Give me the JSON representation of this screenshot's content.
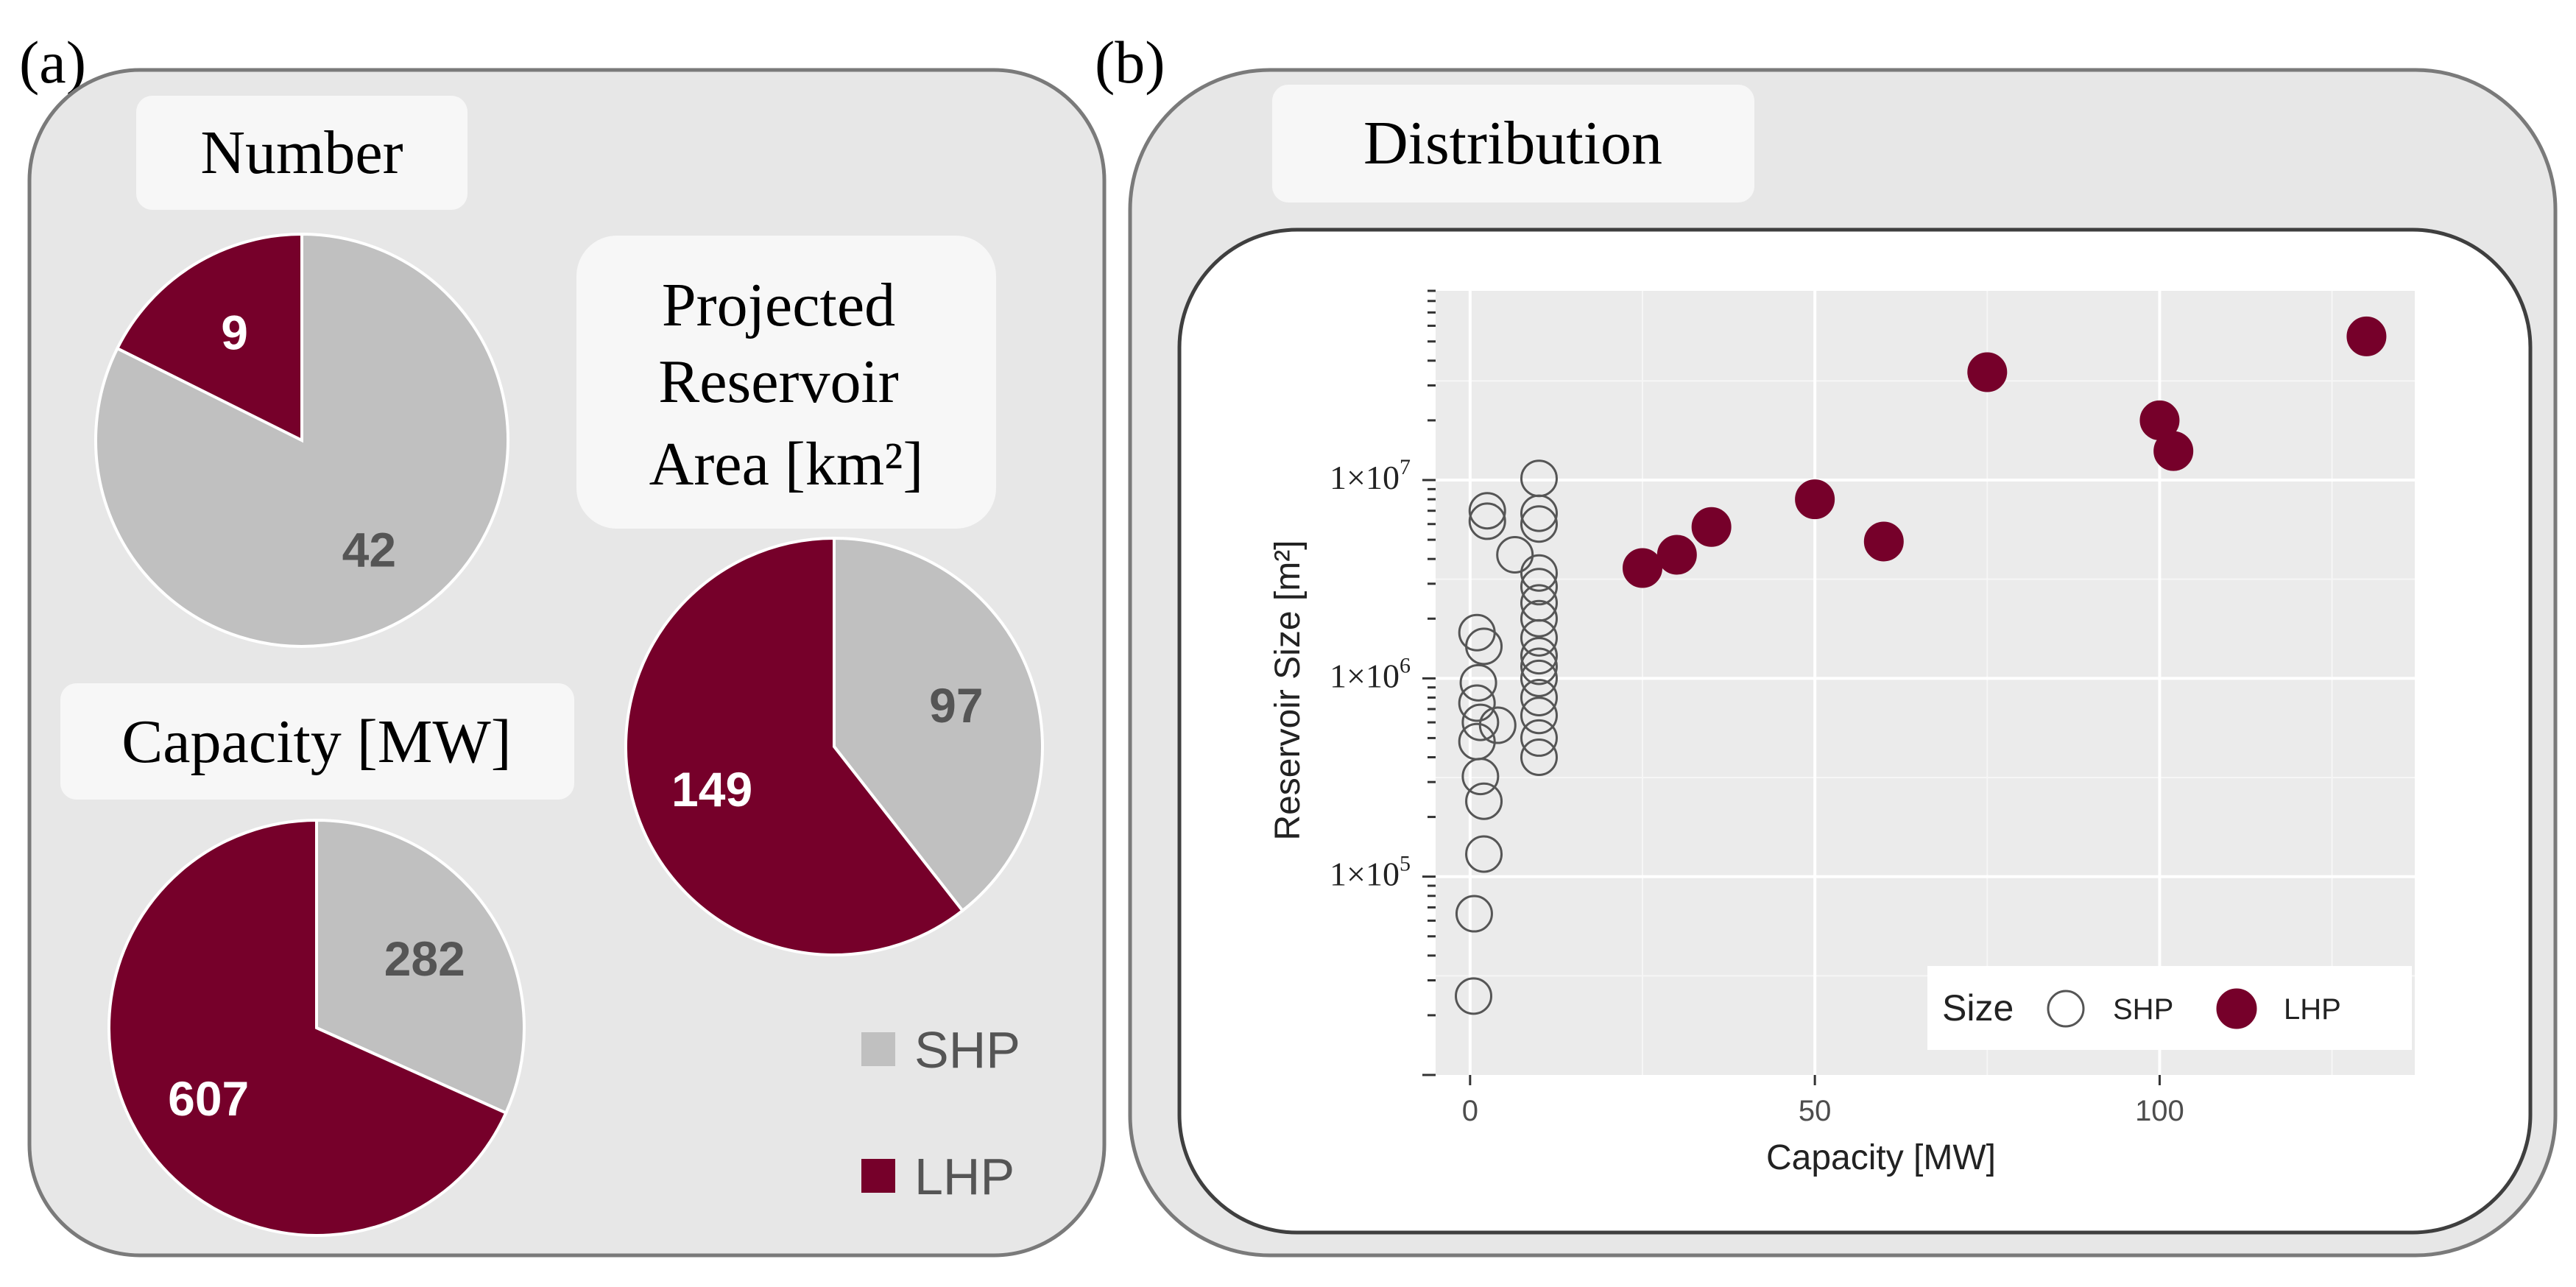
{
  "panel_labels": {
    "a": "(a)",
    "b": "(b)"
  },
  "pies": [
    {
      "title": "Number",
      "slices": [
        {
          "name": "LHP",
          "value": 9,
          "label": "9"
        },
        {
          "name": "SHP",
          "value": 42,
          "label": "42"
        }
      ]
    },
    {
      "title": "Capacity [MW]",
      "slices": [
        {
          "name": "LHP",
          "value": 607,
          "label": "607"
        },
        {
          "name": "SHP",
          "value": 282,
          "label": "282"
        }
      ]
    },
    {
      "title_lines": [
        "Projected",
        "Reservoir",
        "Area [km²]"
      ],
      "slices": [
        {
          "name": "LHP",
          "value": 149,
          "label": "149"
        },
        {
          "name": "SHP",
          "value": 97,
          "label": "97"
        }
      ]
    }
  ],
  "pie_legend": [
    {
      "name": "SHP",
      "color": "#c0c0c0"
    },
    {
      "name": "LHP",
      "color": "#76002a"
    }
  ],
  "colors": {
    "SHP": "#c0c0c0",
    "LHP": "#76002a",
    "SHP_text": "#555555",
    "LHP_text": "#ffffff"
  },
  "scatter_title": "Distribution",
  "chart_data": [
    {
      "type": "pie",
      "title": "Number",
      "categories": [
        "SHP",
        "LHP"
      ],
      "values": [
        42,
        9
      ]
    },
    {
      "type": "pie",
      "title": "Capacity [MW]",
      "categories": [
        "SHP",
        "LHP"
      ],
      "values": [
        282,
        607
      ]
    },
    {
      "type": "pie",
      "title": "Projected Reservoir Area [km²]",
      "categories": [
        "SHP",
        "LHP"
      ],
      "values": [
        97,
        149
      ]
    },
    {
      "type": "scatter",
      "title": "Distribution",
      "xlabel": "Capacity [MW]",
      "ylabel": "Reservoir Size [m²]",
      "xlim": [
        -5,
        137
      ],
      "ylim": [
        10000,
        90000000
      ],
      "y_scale": "log",
      "x_ticks": [
        0,
        50,
        100
      ],
      "y_ticks": [
        {
          "value": 100000,
          "base": "1×10",
          "exp": "5"
        },
        {
          "value": 1000000,
          "base": "1×10",
          "exp": "6"
        },
        {
          "value": 10000000,
          "base": "1×10",
          "exp": "7"
        }
      ],
      "grid": true,
      "legend": {
        "title": "Size",
        "position": "bottom-right"
      },
      "series": [
        {
          "name": "SHP",
          "marker": "open-circle",
          "points": [
            [
              0.5,
              25000
            ],
            [
              0.6,
              65000
            ],
            [
              2.0,
              130000
            ],
            [
              2.0,
              240000
            ],
            [
              1.5,
              320000
            ],
            [
              1.0,
              480000
            ],
            [
              1.5,
              600000
            ],
            [
              4.0,
              580000
            ],
            [
              1.0,
              750000
            ],
            [
              1.2,
              950000
            ],
            [
              2.0,
              1450000
            ],
            [
              1.0,
              1700000
            ],
            [
              2.5,
              6200000
            ],
            [
              2.5,
              7000000
            ],
            [
              6.5,
              4200000
            ],
            [
              10.0,
              400000
            ],
            [
              10.0,
              500000
            ],
            [
              10.0,
              650000
            ],
            [
              10.0,
              800000
            ],
            [
              10.0,
              1000000
            ],
            [
              10.0,
              1150000
            ],
            [
              10.0,
              1300000
            ],
            [
              10.0,
              1600000
            ],
            [
              10.0,
              2000000
            ],
            [
              10.0,
              2400000
            ],
            [
              10.0,
              2900000
            ],
            [
              10.0,
              3400000
            ],
            [
              10.0,
              6000000
            ],
            [
              10.0,
              6800000
            ],
            [
              10.0,
              10200000
            ]
          ]
        },
        {
          "name": "LHP",
          "marker": "filled-circle",
          "points": [
            [
              25,
              3600000
            ],
            [
              30,
              4200000
            ],
            [
              35,
              5800000
            ],
            [
              50,
              8000000
            ],
            [
              60,
              4900000
            ],
            [
              75,
              35000000
            ],
            [
              100,
              20000000
            ],
            [
              102,
              14000000
            ],
            [
              130,
              53000000
            ]
          ]
        }
      ]
    }
  ]
}
